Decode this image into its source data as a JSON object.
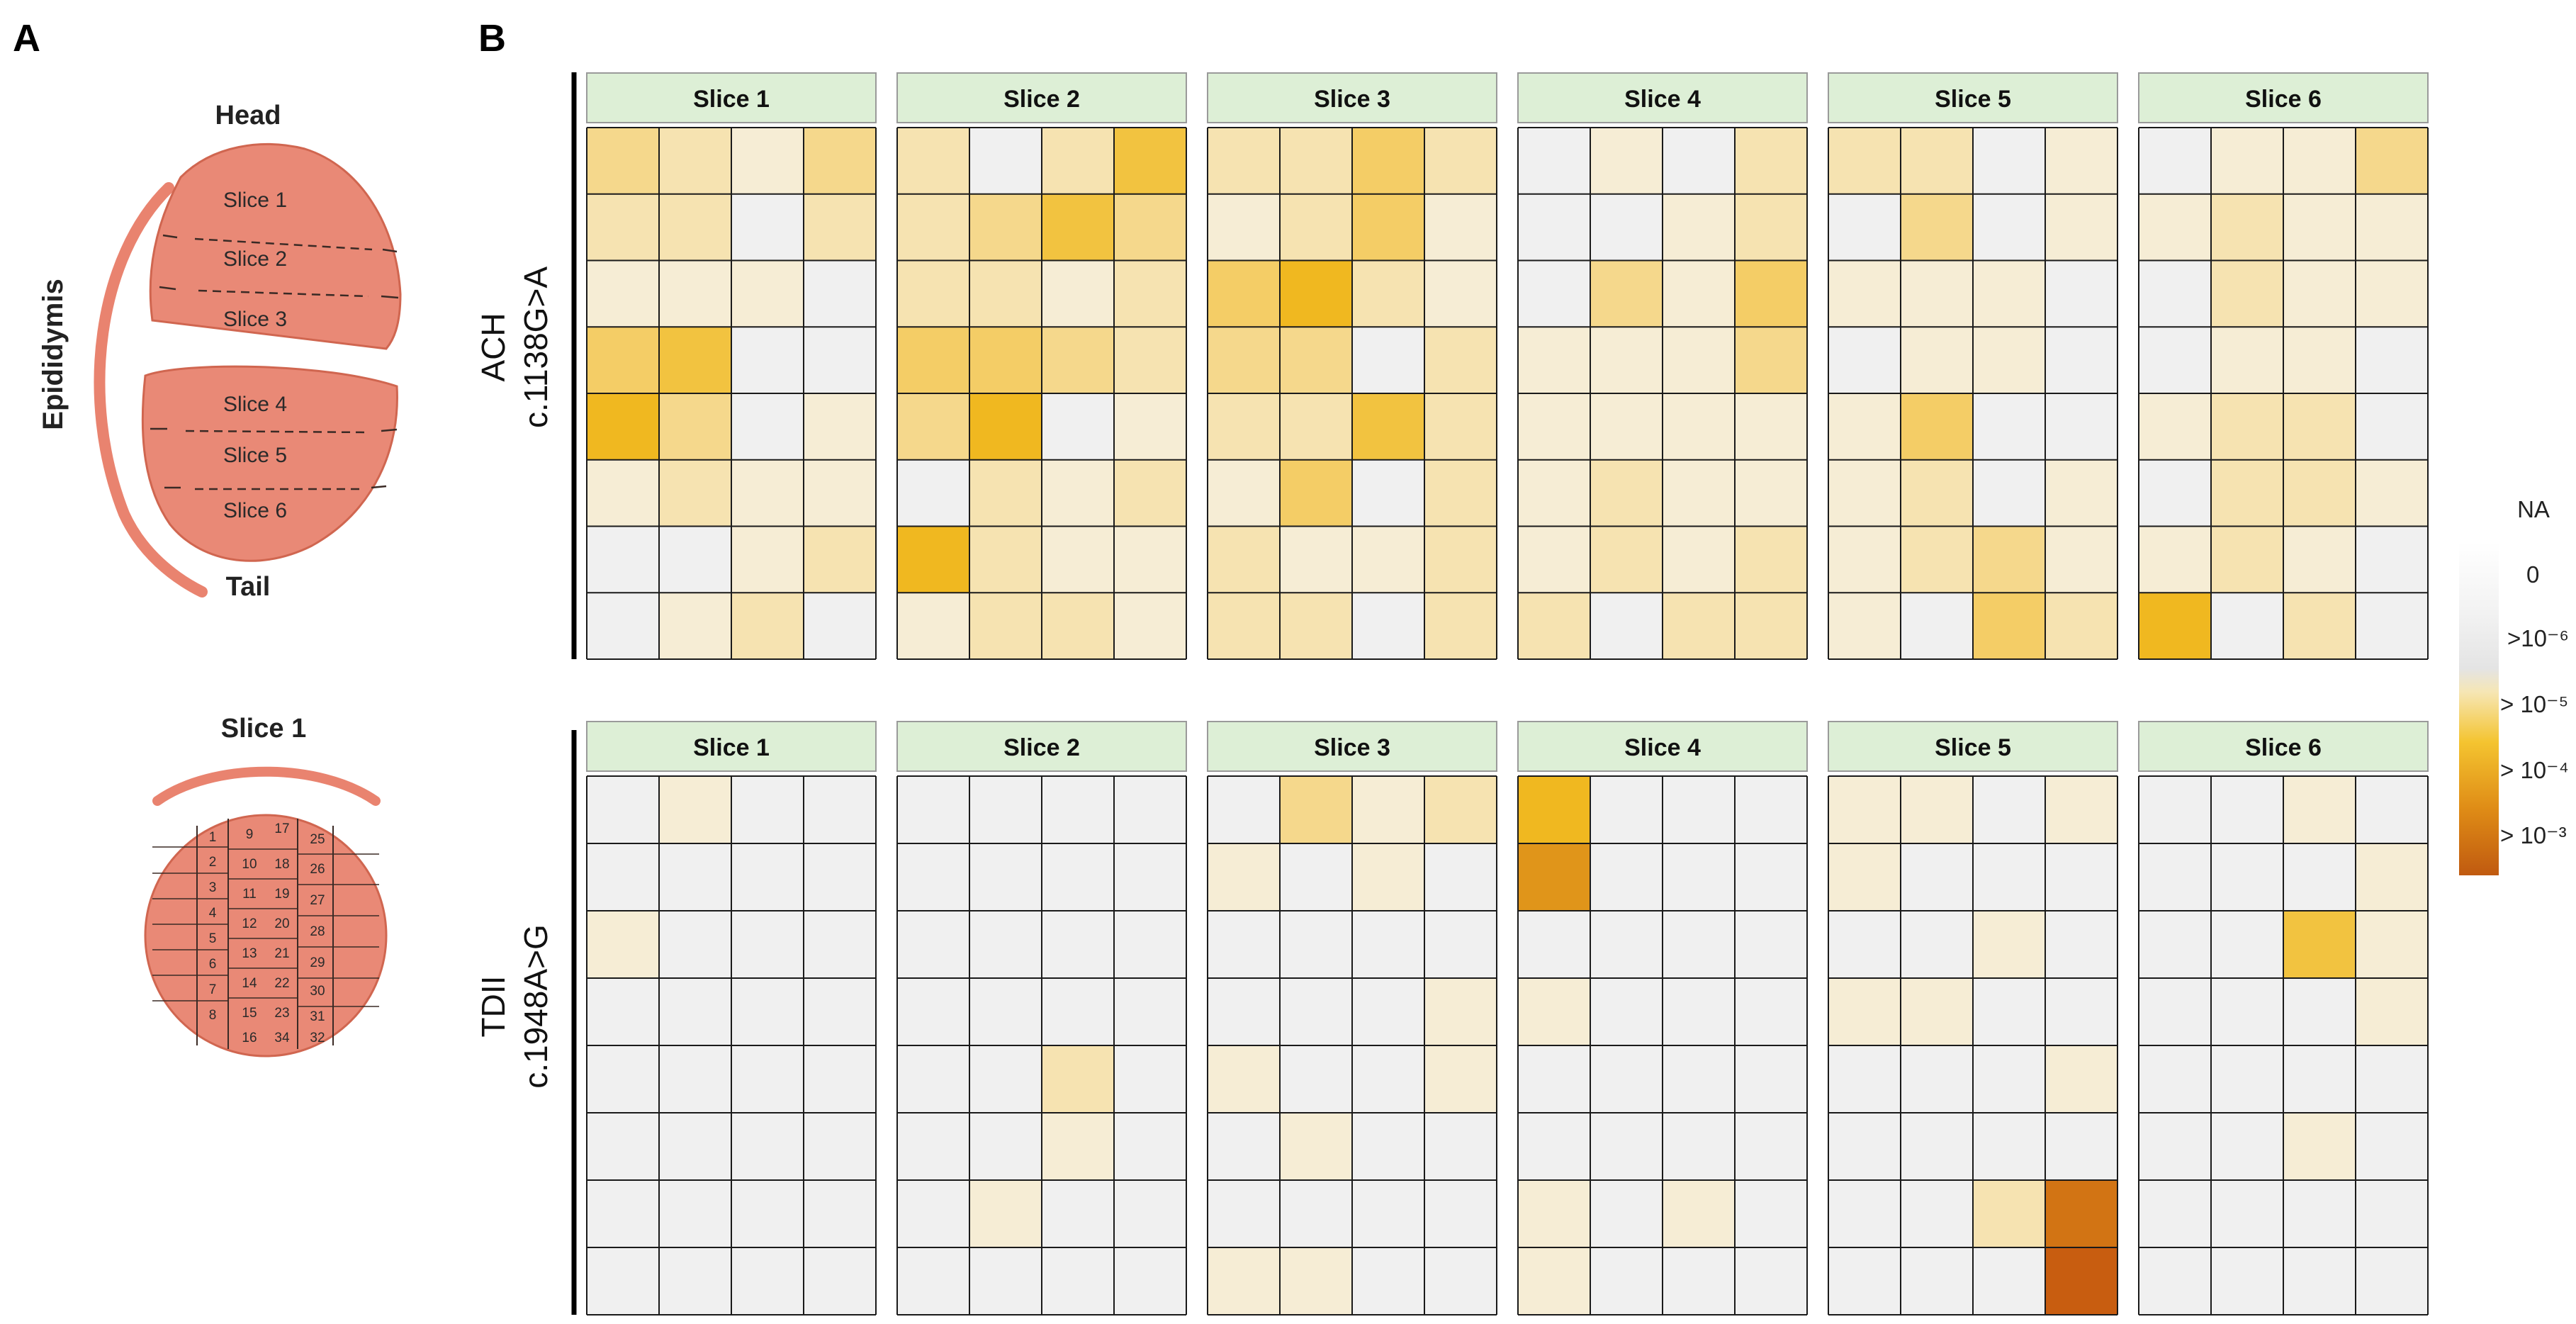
{
  "panel_a": {
    "letter": "A",
    "organ_label": "Epididymis",
    "head_label": "Head",
    "tail_label": "Tail",
    "slices": [
      "Slice 1",
      "Slice 2",
      "Slice 3",
      "Slice 4",
      "Slice 5",
      "Slice 6"
    ],
    "cross_section_title": "Slice 1",
    "pieces": [
      "1",
      "2",
      "3",
      "4",
      "5",
      "6",
      "7",
      "8",
      "9",
      "10",
      "11",
      "12",
      "13",
      "14",
      "15",
      "16",
      "17",
      "18",
      "19",
      "20",
      "21",
      "22",
      "23",
      "34",
      "25",
      "26",
      "27",
      "28",
      "29",
      "30",
      "31",
      "32"
    ]
  },
  "panel_b": {
    "letter": "B",
    "rows": [
      {
        "label_line1": "ACH",
        "label_line2": "c.1138G>A",
        "slices": [
          {
            "title": "Slice 1",
            "grid": [
              [
                3,
                2,
                1,
                3
              ],
              [
                2,
                2,
                0,
                2
              ],
              [
                1,
                1,
                1,
                0
              ],
              [
                4,
                5,
                0,
                0
              ],
              [
                6,
                3,
                0,
                1
              ],
              [
                1,
                2,
                1,
                1
              ],
              [
                0,
                0,
                1,
                2
              ],
              [
                0,
                1,
                2,
                0
              ]
            ]
          },
          {
            "title": "Slice 2",
            "grid": [
              [
                2,
                0,
                2,
                5
              ],
              [
                2,
                3,
                5,
                3
              ],
              [
                2,
                2,
                1,
                2
              ],
              [
                4,
                4,
                3,
                2
              ],
              [
                3,
                6,
                0,
                1
              ],
              [
                0,
                2,
                1,
                2
              ],
              [
                6,
                2,
                1,
                1
              ],
              [
                1,
                2,
                2,
                1
              ]
            ]
          },
          {
            "title": "Slice 3",
            "grid": [
              [
                2,
                2,
                4,
                2
              ],
              [
                1,
                2,
                4,
                1
              ],
              [
                4,
                6,
                2,
                1
              ],
              [
                3,
                3,
                0,
                2
              ],
              [
                2,
                2,
                5,
                2
              ],
              [
                1,
                4,
                0,
                2
              ],
              [
                2,
                1,
                1,
                2
              ],
              [
                2,
                2,
                0,
                2
              ]
            ]
          },
          {
            "title": "Slice 4",
            "grid": [
              [
                0,
                1,
                0,
                2
              ],
              [
                0,
                0,
                1,
                2
              ],
              [
                0,
                3,
                1,
                4
              ],
              [
                1,
                1,
                1,
                3
              ],
              [
                1,
                1,
                1,
                1
              ],
              [
                1,
                2,
                1,
                1
              ],
              [
                1,
                2,
                1,
                2
              ],
              [
                2,
                0,
                2,
                2
              ]
            ]
          },
          {
            "title": "Slice 5",
            "grid": [
              [
                2,
                2,
                0,
                1
              ],
              [
                0,
                3,
                0,
                1
              ],
              [
                1,
                1,
                1,
                0
              ],
              [
                0,
                1,
                1,
                0
              ],
              [
                1,
                4,
                0,
                0
              ],
              [
                1,
                2,
                0,
                1
              ],
              [
                1,
                2,
                3,
                1
              ],
              [
                1,
                0,
                4,
                2
              ]
            ]
          },
          {
            "title": "Slice 6",
            "grid": [
              [
                0,
                1,
                1,
                3
              ],
              [
                1,
                2,
                1,
                1
              ],
              [
                0,
                2,
                1,
                1
              ],
              [
                0,
                1,
                1,
                0
              ],
              [
                1,
                2,
                2,
                0
              ],
              [
                0,
                2,
                2,
                1
              ],
              [
                1,
                2,
                1,
                0
              ],
              [
                6,
                0,
                2,
                0
              ]
            ]
          }
        ]
      },
      {
        "label_line1": "TDII",
        "label_line2": "c.1948A>G",
        "slices": [
          {
            "title": "Slice 1",
            "grid": [
              [
                0,
                1,
                0,
                0
              ],
              [
                0,
                0,
                0,
                0
              ],
              [
                1,
                0,
                0,
                0
              ],
              [
                0,
                0,
                0,
                0
              ],
              [
                0,
                0,
                0,
                0
              ],
              [
                0,
                0,
                0,
                0
              ],
              [
                0,
                0,
                0,
                0
              ],
              [
                0,
                0,
                0,
                0
              ]
            ]
          },
          {
            "title": "Slice 2",
            "grid": [
              [
                0,
                0,
                0,
                0
              ],
              [
                0,
                0,
                0,
                0
              ],
              [
                0,
                0,
                0,
                0
              ],
              [
                0,
                0,
                0,
                0
              ],
              [
                0,
                0,
                2,
                0
              ],
              [
                0,
                0,
                1,
                0
              ],
              [
                0,
                1,
                0,
                0
              ],
              [
                0,
                0,
                0,
                0
              ]
            ]
          },
          {
            "title": "Slice 3",
            "grid": [
              [
                0,
                3,
                1,
                2
              ],
              [
                1,
                0,
                1,
                0
              ],
              [
                0,
                0,
                0,
                0
              ],
              [
                0,
                0,
                0,
                1
              ],
              [
                1,
                0,
                0,
                1
              ],
              [
                0,
                1,
                0,
                0
              ],
              [
                0,
                0,
                0,
                0
              ],
              [
                1,
                1,
                0,
                0
              ]
            ]
          },
          {
            "title": "Slice 4",
            "grid": [
              [
                6,
                0,
                0,
                0
              ],
              [
                7,
                0,
                0,
                0
              ],
              [
                0,
                0,
                0,
                0
              ],
              [
                1,
                0,
                0,
                0
              ],
              [
                0,
                0,
                0,
                0
              ],
              [
                0,
                0,
                0,
                0
              ],
              [
                1,
                0,
                1,
                0
              ],
              [
                1,
                0,
                0,
                0
              ]
            ]
          },
          {
            "title": "Slice 5",
            "grid": [
              [
                1,
                1,
                0,
                1
              ],
              [
                1,
                0,
                0,
                0
              ],
              [
                0,
                0,
                1,
                0
              ],
              [
                1,
                1,
                0,
                0
              ],
              [
                0,
                0,
                0,
                1
              ],
              [
                0,
                0,
                0,
                0
              ],
              [
                0,
                0,
                2,
                8
              ],
              [
                0,
                0,
                0,
                9
              ]
            ]
          },
          {
            "title": "Slice 6",
            "grid": [
              [
                0,
                0,
                1,
                0
              ],
              [
                0,
                0,
                0,
                1
              ],
              [
                0,
                0,
                5,
                1
              ],
              [
                0,
                0,
                0,
                1
              ],
              [
                0,
                0,
                0,
                0
              ],
              [
                0,
                0,
                1,
                0
              ],
              [
                0,
                0,
                0,
                0
              ],
              [
                0,
                0,
                0,
                0
              ]
            ]
          }
        ]
      }
    ]
  },
  "legend": {
    "labels": [
      "NA",
      "0",
      ">10⁻⁶",
      "> 10⁻⁵",
      "> 10⁻⁴",
      "> 10⁻³"
    ],
    "gradient_colors": [
      "#ffffff",
      "#e6e6e6",
      "#f5dfa8",
      "#f4c430",
      "#df8c16",
      "#c05a10"
    ]
  },
  "palette": [
    "#f0f0f0",
    "#f6edd5",
    "#f6e3b1",
    "#f5d88c",
    "#f4cd66",
    "#f2c340",
    "#f0b820",
    "#e0951a",
    "#d27414",
    "#c85d10"
  ]
}
